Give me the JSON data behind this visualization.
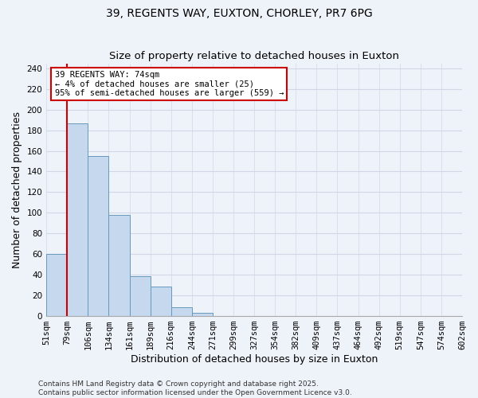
{
  "title": "39, REGENTS WAY, EUXTON, CHORLEY, PR7 6PG",
  "subtitle": "Size of property relative to detached houses in Euxton",
  "xlabel": "Distribution of detached houses by size in Euxton",
  "ylabel": "Number of detached properties",
  "bar_color": "#c5d8ee",
  "bar_edge_color": "#6699bb",
  "bin_labels": [
    "51sqm",
    "79sqm",
    "106sqm",
    "134sqm",
    "161sqm",
    "189sqm",
    "216sqm",
    "244sqm",
    "271sqm",
    "299sqm",
    "327sqm",
    "354sqm",
    "382sqm",
    "409sqm",
    "437sqm",
    "464sqm",
    "492sqm",
    "519sqm",
    "547sqm",
    "574sqm",
    "602sqm"
  ],
  "values": [
    60,
    187,
    155,
    98,
    38,
    28,
    8,
    3,
    0,
    0,
    0,
    0,
    0,
    0,
    0,
    0,
    0,
    0,
    0,
    0
  ],
  "ylim": [
    0,
    245
  ],
  "yticks": [
    0,
    20,
    40,
    60,
    80,
    100,
    120,
    140,
    160,
    180,
    200,
    220,
    240
  ],
  "marker_color": "#cc0000",
  "annotation_title": "39 REGENTS WAY: 74sqm",
  "annotation_line1": "← 4% of detached houses are smaller (25)",
  "annotation_line2": "95% of semi-detached houses are larger (559) →",
  "annotation_box_color": "#ffffff",
  "annotation_box_edge": "#cc0000",
  "footer1": "Contains HM Land Registry data © Crown copyright and database right 2025.",
  "footer2": "Contains public sector information licensed under the Open Government Licence v3.0.",
  "background_color": "#eef2f9",
  "grid_color": "#d0d8e8",
  "title_fontsize": 10,
  "axis_label_fontsize": 9,
  "tick_fontsize": 7.5,
  "footer_fontsize": 6.5,
  "annotation_fontsize": 7.5
}
